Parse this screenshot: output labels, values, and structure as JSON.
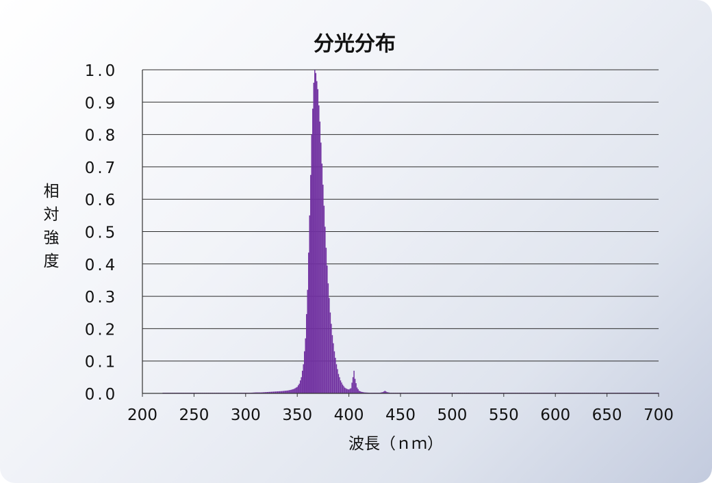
{
  "chart_data": {
    "type": "bar",
    "title": "分光分布",
    "xlabel": "波長（ｎｍ）",
    "ylabel": "相対強度",
    "xlim": [
      200,
      700
    ],
    "ylim": [
      0,
      1.0
    ],
    "x_ticks": [
      "200",
      "250",
      "300",
      "350",
      "400",
      "450",
      "500",
      "550",
      "600",
      "650",
      "700"
    ],
    "y_ticks": [
      "0.0",
      "0.1",
      "0.2",
      "0.3",
      "0.4",
      "0.5",
      "0.6",
      "0.7",
      "0.8",
      "0.9",
      "1.0"
    ],
    "grid": "horizontal",
    "bar_color": "#7030a0",
    "series": [
      {
        "x": [
          220,
          230,
          240,
          250,
          260,
          270,
          280,
          290,
          300,
          305,
          310,
          315,
          320,
          325,
          330,
          335,
          338,
          341,
          344,
          347,
          350,
          352,
          354,
          356,
          358,
          360,
          362,
          364,
          366,
          367,
          368,
          370,
          372,
          374,
          376,
          378,
          380,
          382,
          384,
          386,
          388,
          390,
          392,
          394,
          396,
          398,
          400,
          402,
          404,
          405,
          406,
          408,
          410,
          412,
          415,
          420,
          425,
          430,
          433,
          435,
          437,
          440,
          445,
          450,
          460,
          480,
          500,
          550,
          600,
          650,
          700
        ],
        "values": [
          0.002,
          0.002,
          0.002,
          0.002,
          0.002,
          0.002,
          0.002,
          0.002,
          0.002,
          0.002,
          0.003,
          0.003,
          0.004,
          0.005,
          0.006,
          0.007,
          0.008,
          0.009,
          0.011,
          0.014,
          0.02,
          0.03,
          0.05,
          0.09,
          0.17,
          0.32,
          0.55,
          0.8,
          0.96,
          1.0,
          0.99,
          0.94,
          0.84,
          0.71,
          0.58,
          0.45,
          0.34,
          0.25,
          0.18,
          0.13,
          0.09,
          0.06,
          0.04,
          0.027,
          0.018,
          0.014,
          0.012,
          0.016,
          0.05,
          0.07,
          0.045,
          0.018,
          0.008,
          0.005,
          0.003,
          0.002,
          0.002,
          0.002,
          0.004,
          0.008,
          0.004,
          0.002,
          0.002,
          0.002,
          0.002,
          0.002,
          0.002,
          0.002,
          0.002,
          0.002,
          0.002
        ]
      }
    ]
  }
}
